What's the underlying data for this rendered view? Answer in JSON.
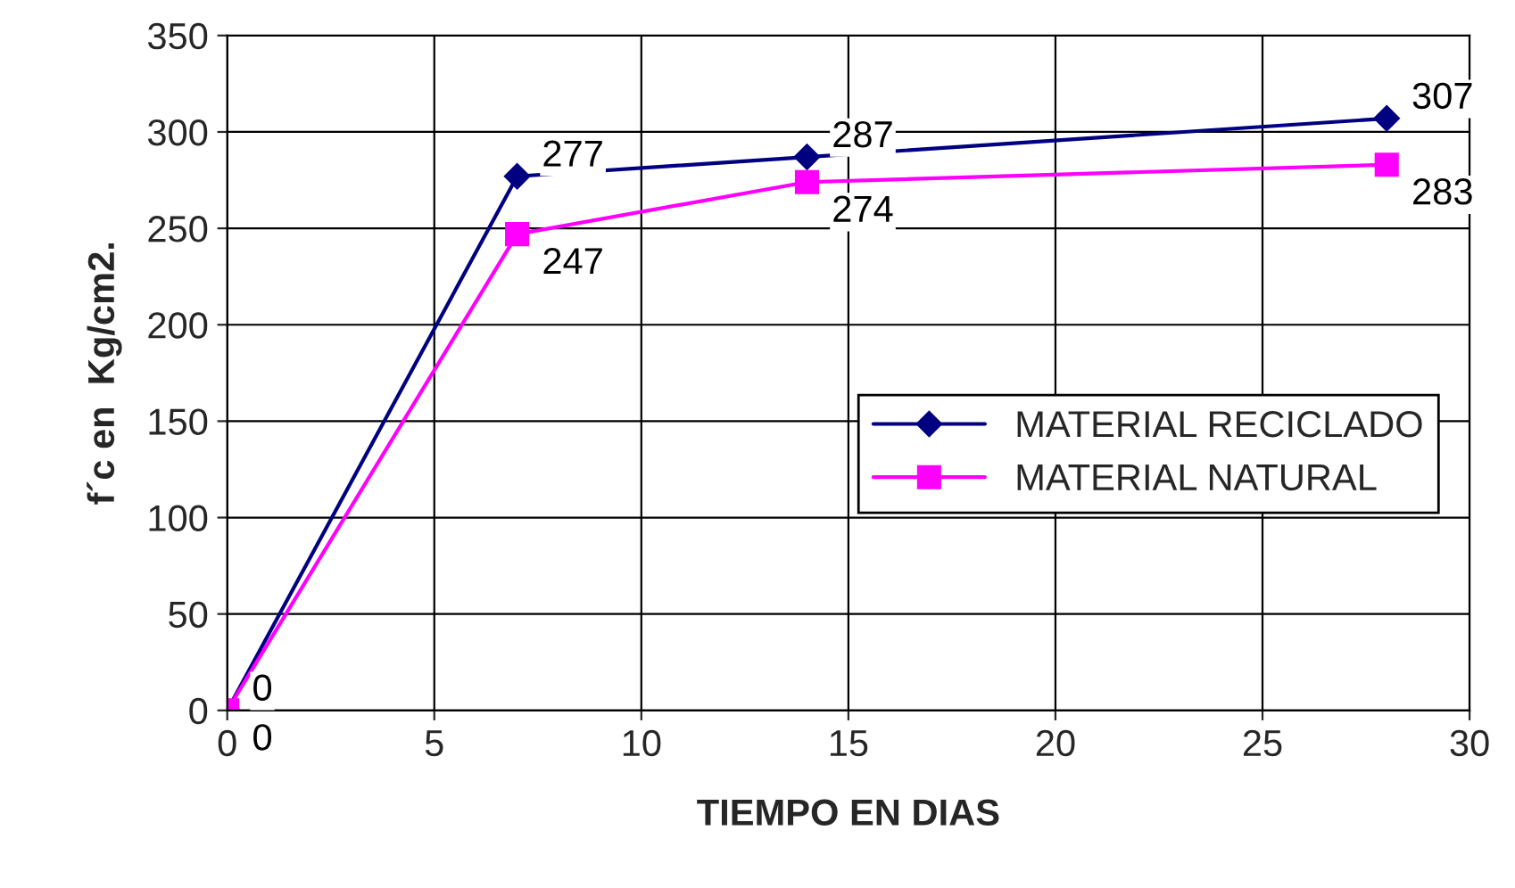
{
  "chart_data": {
    "type": "line",
    "xlabel": "TIEMPO EN DIAS",
    "ylabel": "f´c en  Kg/cm2.",
    "x": [
      0,
      7,
      14,
      28
    ],
    "series": [
      {
        "name": "MATERIAL RECICLADO",
        "color": "#000080",
        "marker": "diamond",
        "values": [
          0,
          277,
          287,
          307
        ]
      },
      {
        "name": "MATERIAL NATURAL",
        "color": "#ff00ff",
        "marker": "square",
        "values": [
          0,
          247,
          274,
          283
        ]
      }
    ],
    "xlim": [
      0,
      30
    ],
    "xticks": [
      0,
      5,
      10,
      15,
      20,
      25,
      30
    ],
    "ylim": [
      0,
      350
    ],
    "yticks": [
      0,
      50,
      100,
      150,
      200,
      250,
      300,
      350
    ],
    "grid": true,
    "legend": "right",
    "data_labels": true,
    "line_style": "solid"
  }
}
